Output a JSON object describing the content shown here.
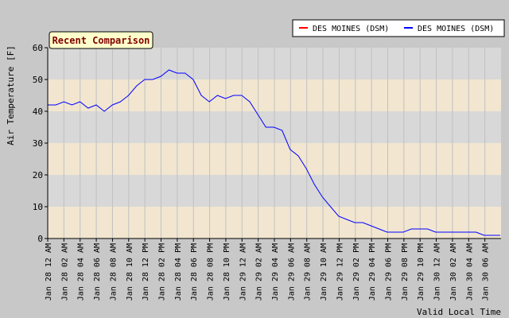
{
  "chart_data": {
    "type": "line",
    "title": "Recent Comparison",
    "ylabel": "Air Temperature [F]",
    "xlabel": "Valid Local Time",
    "ylim": [
      0,
      60
    ],
    "yticks": [
      0,
      10,
      20,
      30,
      40,
      50,
      60
    ],
    "x_tick_labels": [
      "Jan 28 12 AM",
      "Jan 28 02 AM",
      "Jan 28 04 AM",
      "Jan 28 06 AM",
      "Jan 28 08 AM",
      "Jan 28 10 AM",
      "Jan 28 12 PM",
      "Jan 28 02 PM",
      "Jan 28 04 PM",
      "Jan 28 06 PM",
      "Jan 28 08 PM",
      "Jan 28 10 PM",
      "Jan 29 12 AM",
      "Jan 29 02 AM",
      "Jan 29 04 AM",
      "Jan 29 06 AM",
      "Jan 29 08 AM",
      "Jan 29 10 AM",
      "Jan 29 12 PM",
      "Jan 29 02 PM",
      "Jan 29 04 PM",
      "Jan 29 06 PM",
      "Jan 29 08 PM",
      "Jan 29 10 PM",
      "Jan 30 12 AM",
      "Jan 30 02 AM",
      "Jan 30 04 AM",
      "Jan 30 06 AM"
    ],
    "series": [
      {
        "name": "DES MOINES (DSM)",
        "color": "#ff0000",
        "points": []
      },
      {
        "name": "DES MOINES (DSM)",
        "color": "#0000ff",
        "points": [
          [
            0,
            42
          ],
          [
            1,
            42
          ],
          [
            2,
            43
          ],
          [
            3,
            42
          ],
          [
            4,
            43
          ],
          [
            5,
            41
          ],
          [
            6,
            42
          ],
          [
            7,
            40
          ],
          [
            8,
            42
          ],
          [
            9,
            43
          ],
          [
            10,
            45
          ],
          [
            11,
            48
          ],
          [
            12,
            50
          ],
          [
            13,
            50
          ],
          [
            14,
            51
          ],
          [
            15,
            53
          ],
          [
            16,
            52
          ],
          [
            17,
            52
          ],
          [
            18,
            50
          ],
          [
            19,
            45
          ],
          [
            20,
            43
          ],
          [
            21,
            45
          ],
          [
            22,
            44
          ],
          [
            23,
            45
          ],
          [
            24,
            45
          ],
          [
            25,
            43
          ],
          [
            26,
            39
          ],
          [
            27,
            35
          ],
          [
            28,
            35
          ],
          [
            29,
            34
          ],
          [
            30,
            28
          ],
          [
            31,
            26
          ],
          [
            32,
            22
          ],
          [
            33,
            17
          ],
          [
            34,
            13
          ],
          [
            35,
            10
          ],
          [
            36,
            7
          ],
          [
            37,
            6
          ],
          [
            38,
            5
          ],
          [
            39,
            5
          ],
          [
            40,
            4
          ],
          [
            41,
            3
          ],
          [
            42,
            2
          ],
          [
            43,
            2
          ],
          [
            44,
            2
          ],
          [
            45,
            3
          ],
          [
            46,
            3
          ],
          [
            47,
            3
          ],
          [
            48,
            2
          ],
          [
            49,
            2
          ],
          [
            50,
            2
          ],
          [
            51,
            2
          ],
          [
            52,
            2
          ],
          [
            53,
            2
          ],
          [
            54,
            1
          ],
          [
            55,
            1
          ],
          [
            56,
            1
          ]
        ]
      }
    ],
    "legend_position": "top-right",
    "grid": true,
    "band_colors": [
      "#f2e6d0",
      "#d8d8d8"
    ],
    "line_color": "#0000ff"
  }
}
